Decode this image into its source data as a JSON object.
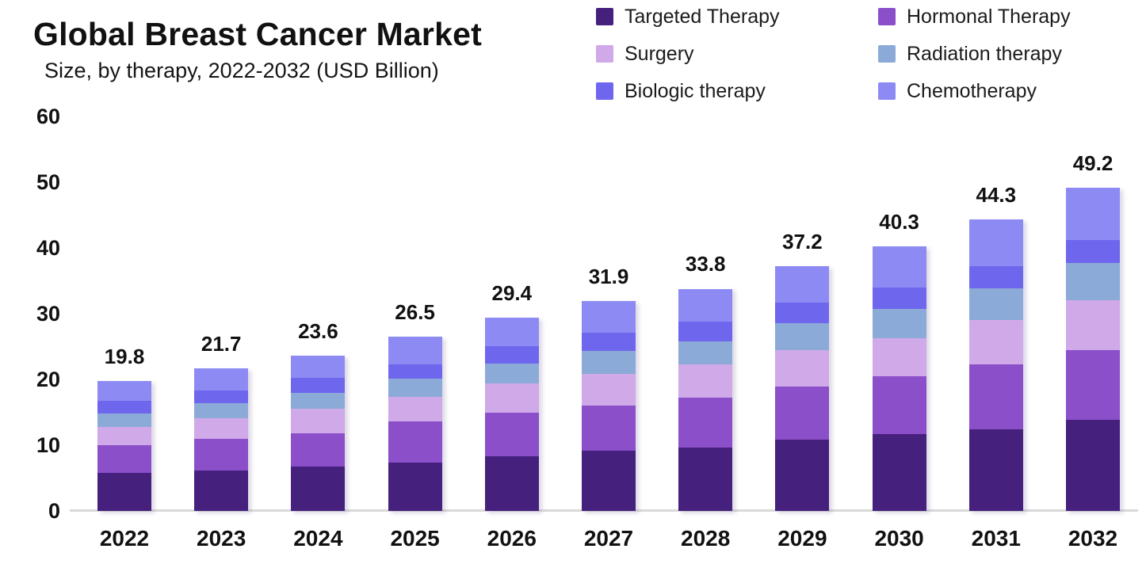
{
  "header": {
    "title": "Global Breast Cancer Market",
    "subtitle": "Size, by therapy, 2022-2032 (USD Billion)"
  },
  "chart_data": {
    "type": "bar",
    "stacked": true,
    "title": "Global Breast Cancer Market",
    "subtitle": "Size, by therapy, 2022-2032 (USD Billion)",
    "unit": "USD Billion",
    "categories": [
      "2022",
      "2023",
      "2024",
      "2025",
      "2026",
      "2027",
      "2028",
      "2029",
      "2030",
      "2031",
      "2032"
    ],
    "series": [
      {
        "name": "Targeted Therapy",
        "color": "#46207d",
        "values": [
          5.75,
          6.2,
          6.8,
          7.4,
          8.3,
          9.2,
          9.6,
          10.8,
          11.7,
          12.4,
          13.9
        ]
      },
      {
        "name": "Hormonal Therapy",
        "color": "#8a4fc9",
        "values": [
          4.3,
          4.8,
          5.0,
          6.2,
          6.6,
          6.8,
          7.6,
          8.1,
          8.8,
          9.9,
          10.5
        ]
      },
      {
        "name": "Surgery",
        "color": "#cfa9e8",
        "values": [
          2.75,
          3.1,
          3.7,
          3.8,
          4.5,
          4.8,
          5.1,
          5.6,
          5.8,
          6.7,
          7.7
        ]
      },
      {
        "name": "Radiation therapy",
        "color": "#8caad8",
        "values": [
          2.0,
          2.3,
          2.4,
          2.7,
          3.0,
          3.5,
          3.5,
          4.1,
          4.4,
          4.8,
          5.6
        ]
      },
      {
        "name": "Biologic therapy",
        "color": "#6f66ee",
        "values": [
          2.0,
          1.9,
          2.3,
          2.2,
          2.7,
          2.8,
          3.0,
          3.1,
          3.3,
          3.4,
          3.5
        ]
      },
      {
        "name": "Chemotherapy",
        "color": "#8d8bf3",
        "values": [
          3.0,
          3.4,
          3.4,
          4.2,
          4.3,
          4.8,
          5.0,
          5.5,
          6.3,
          7.1,
          8.0
        ]
      }
    ],
    "totals": [
      19.8,
      21.7,
      23.6,
      26.5,
      29.4,
      31.9,
      33.8,
      37.2,
      40.3,
      44.3,
      49.2
    ],
    "total_labels": [
      "19.8",
      "21.7",
      "23.6",
      "26.5",
      "29.4",
      "31.9",
      "33.8",
      "37.2",
      "40.3",
      "44.3",
      "49.2"
    ],
    "y_ticks": [
      0,
      10,
      20,
      30,
      40,
      50,
      60
    ],
    "ylim": [
      0,
      60
    ],
    "xlabel": "",
    "ylabel": "",
    "grid": false,
    "legend_position": "top-right",
    "legend_columns": 2,
    "legend_order": [
      "Targeted Therapy",
      "Hormonal Therapy",
      "Surgery",
      "Radiation therapy",
      "Biologic therapy",
      "Chemotherapy"
    ]
  },
  "colors": {
    "axis_line": "#d9d9d9",
    "text": "#111111",
    "background": "#ffffff"
  }
}
